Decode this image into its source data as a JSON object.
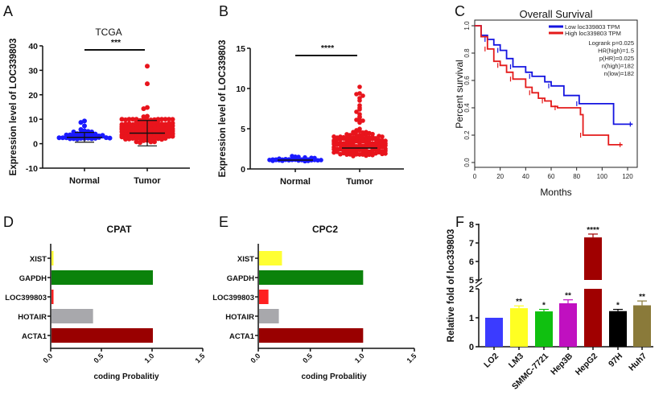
{
  "chart_data": [
    {
      "panel": "A",
      "type": "scatter",
      "title": "TCGA",
      "xlabel": "",
      "ylabel": "Expression level of LOC339803",
      "categories": [
        "Normal",
        "Tumor"
      ],
      "ylim": [
        -10,
        40
      ],
      "yticks": [
        -10,
        0,
        10,
        20,
        30,
        40
      ],
      "significance": "***",
      "series": [
        {
          "name": "Normal",
          "color": "#1a1aff",
          "mean": 2.6,
          "sd": 2.0,
          "n": 50,
          "max": 9.3,
          "highlights": [
            9.3,
            8.7,
            5.0,
            4.8
          ]
        },
        {
          "name": "Tumor",
          "color": "#e8141c",
          "mean": 4.3,
          "sd": 5.2,
          "n": 370,
          "max": 31.7,
          "highlights": [
            31.7,
            24.5,
            14.8,
            14.3,
            11.2,
            11.0,
            9.8
          ]
        }
      ]
    },
    {
      "panel": "B",
      "type": "scatter",
      "title": "",
      "xlabel": "",
      "ylabel": "Expression level of LOC339803",
      "categories": [
        "Normal",
        "Tumor"
      ],
      "ylim": [
        0,
        15
      ],
      "yticks": [
        0,
        5,
        10,
        15
      ],
      "significance": "****",
      "series": [
        {
          "name": "Normal",
          "color": "#1a1aff",
          "mean": 1.1,
          "sd": 0.25,
          "n": 50,
          "max": 1.6,
          "highlights": [
            1.6,
            1.5
          ]
        },
        {
          "name": "Tumor",
          "color": "#e8141c",
          "mean": 2.6,
          "sd": 1.6,
          "n": 370,
          "max": 10.2,
          "highlights": [
            10.2,
            9.4,
            9.3,
            9.1,
            8.8,
            8.5,
            7.9,
            7.6,
            7.4,
            7.1,
            6.8,
            6.5,
            6.4,
            6.1,
            6.0
          ]
        }
      ]
    },
    {
      "panel": "C",
      "type": "line",
      "title": "Overall Survival",
      "xlabel": "Months",
      "ylabel": "Percent survival",
      "xlim": [
        0,
        125
      ],
      "ylim": [
        0,
        1
      ],
      "xticks": [
        0,
        20,
        40,
        60,
        80,
        100,
        120
      ],
      "yticks": [
        "0.0",
        "0.2",
        "0.4",
        "0.6",
        "0.8",
        "1.0"
      ],
      "legend": [
        "Low loc339803 TPM",
        "High loc339803 TPM"
      ],
      "stats": [
        "Logrank p=0.025",
        "HR(high)=1.5",
        "p(HR)=0.025",
        "n(high)=182",
        "n(low)=182"
      ],
      "series": [
        {
          "name": "Low loc339803 TPM",
          "color": "#1414e0",
          "x": [
            0,
            5,
            10,
            15,
            20,
            25,
            30,
            40,
            45,
            55,
            60,
            70,
            82,
            109,
            124
          ],
          "y": [
            1.0,
            0.93,
            0.9,
            0.86,
            0.82,
            0.76,
            0.7,
            0.66,
            0.63,
            0.59,
            0.56,
            0.49,
            0.43,
            0.28,
            0.28
          ]
        },
        {
          "name": "High loc339803 TPM",
          "color": "#e41a1a",
          "x": [
            0,
            5,
            10,
            15,
            20,
            25,
            30,
            40,
            45,
            50,
            55,
            60,
            65,
            83,
            85,
            105,
            116
          ],
          "y": [
            1.0,
            0.92,
            0.83,
            0.74,
            0.71,
            0.66,
            0.61,
            0.55,
            0.51,
            0.47,
            0.45,
            0.41,
            0.4,
            0.35,
            0.2,
            0.13,
            0.13
          ]
        }
      ]
    },
    {
      "panel": "D",
      "type": "bar",
      "orientation": "horizontal",
      "title": "CPAT",
      "xlabel": "coding Probalitiy",
      "ylabel": "",
      "categories": [
        "XIST",
        "GAPDH",
        "LOC399803",
        "HOTAIR",
        "ACTA1"
      ],
      "values": [
        0.02,
        1.0,
        0.02,
        0.41,
        1.0
      ],
      "colors": [
        "#ffff33",
        "#0b820b",
        "#ff2020",
        "#a8a8ac",
        "#990000"
      ],
      "xlim": [
        0,
        1.5
      ],
      "xticks": [
        "0.0",
        "0.5",
        "1.0",
        "1.5"
      ]
    },
    {
      "panel": "E",
      "type": "bar",
      "orientation": "horizontal",
      "title": "CPC2",
      "xlabel": "coding Probalitiy",
      "ylabel": "",
      "categories": [
        "XIST",
        "GAPDH",
        "LOC399803",
        "HOTAIR",
        "ACTA1"
      ],
      "values": [
        0.22,
        1.0,
        0.09,
        0.19,
        1.0
      ],
      "colors": [
        "#ffff33",
        "#0b820b",
        "#ff2020",
        "#a8a8ac",
        "#990000"
      ],
      "xlim": [
        0,
        1.5
      ],
      "xticks": [
        "0.0",
        "0.5",
        "1.0",
        "1.5"
      ]
    },
    {
      "panel": "F",
      "type": "bar",
      "title": "",
      "xlabel": "",
      "ylabel": "Relative fold of loc339803",
      "categories": [
        "LO2",
        "LM3",
        "SMMC-7721",
        "Hep3B",
        "HepG2",
        "97H",
        "Huh7"
      ],
      "values": [
        1.0,
        1.33,
        1.22,
        1.5,
        7.3,
        1.23,
        1.43
      ],
      "errors": [
        0,
        0.08,
        0.07,
        0.12,
        0.18,
        0.06,
        0.15
      ],
      "significance": [
        "",
        "**",
        "*",
        "**",
        "****",
        "*",
        "**"
      ],
      "colors": [
        "#3b3bff",
        "#ffff22",
        "#10c010",
        "#c010c0",
        "#a00000",
        "#000000",
        "#8a7a3a"
      ],
      "yaxis_break": [
        2,
        5
      ],
      "yticks": [
        0,
        1,
        2,
        5,
        6,
        7,
        8
      ]
    }
  ],
  "panel_labels": [
    "A",
    "B",
    "C",
    "D",
    "E",
    "F"
  ]
}
